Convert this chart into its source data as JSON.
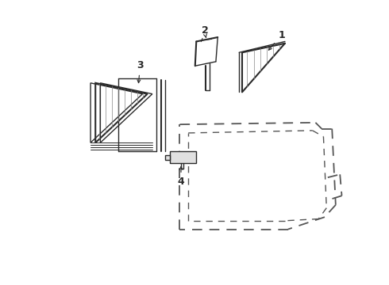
{
  "bg_color": "#ffffff",
  "line_color": "#2a2a2a",
  "dashed_color": "#555555",
  "label_color": "#000000",
  "figsize": [
    4.9,
    3.6
  ],
  "dpi": 100
}
